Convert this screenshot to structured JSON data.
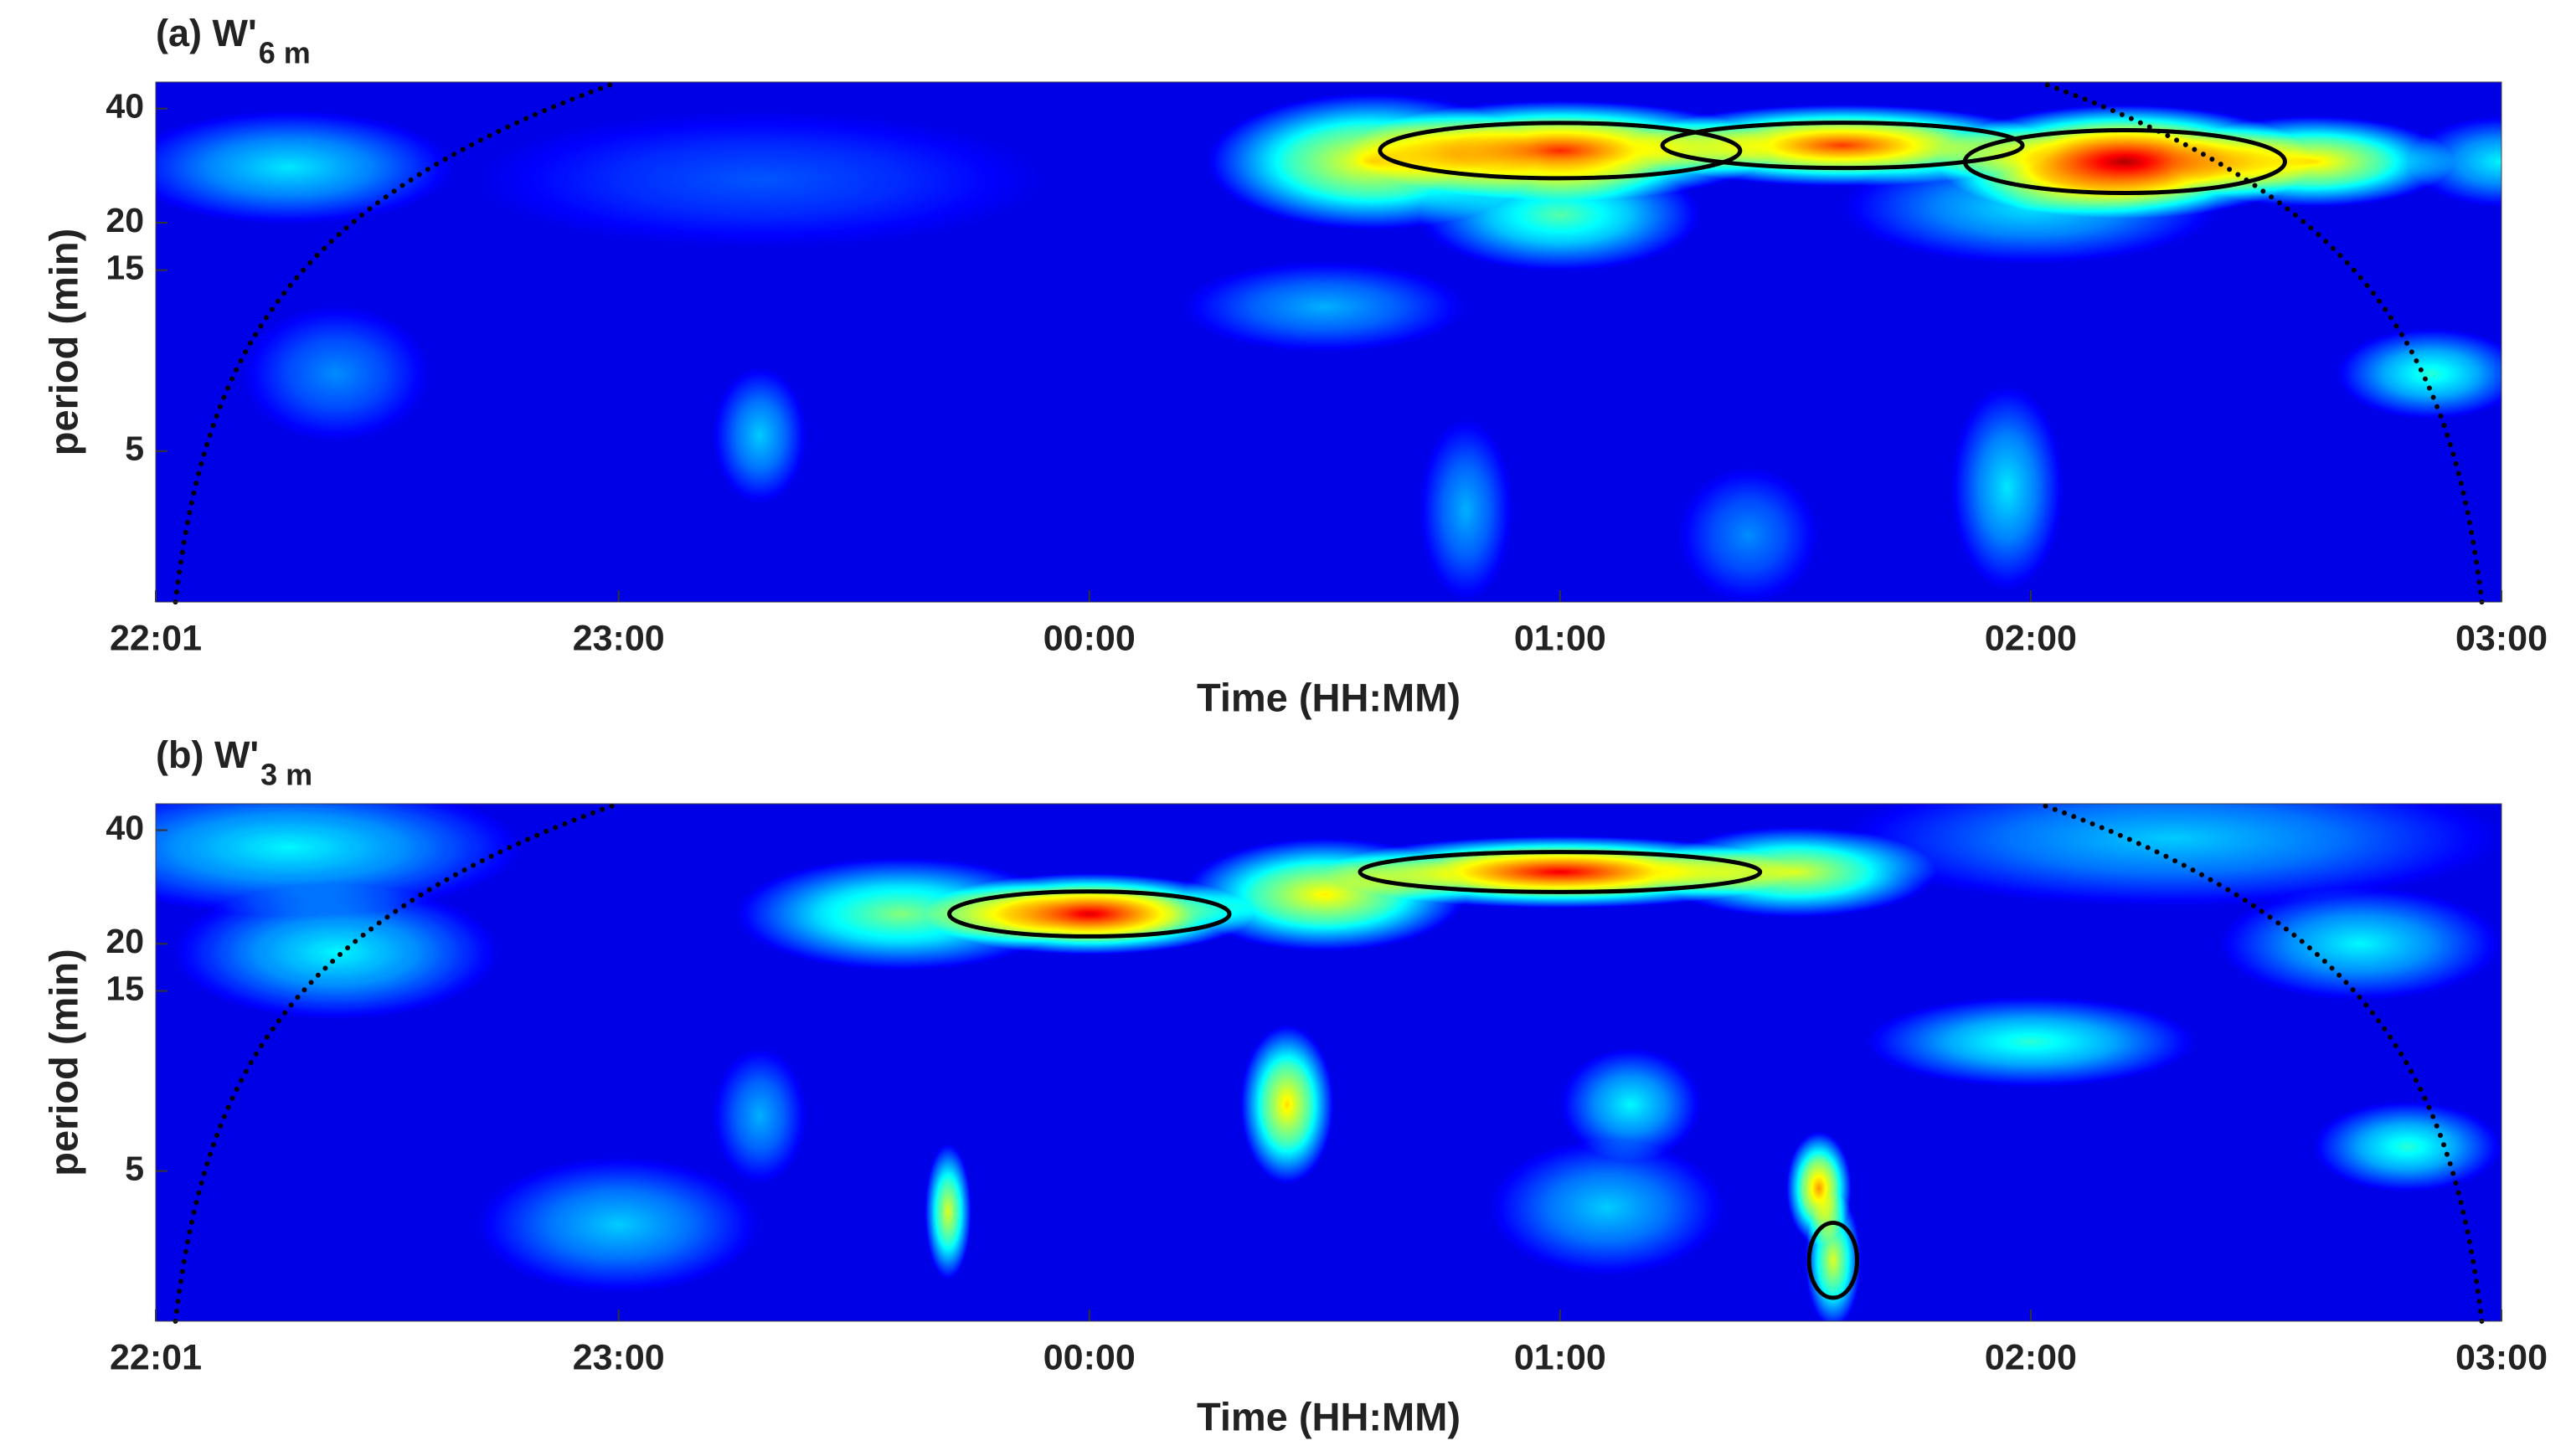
{
  "chart_data": [
    {
      "type": "heatmap",
      "title": "(a) W'",
      "title_subscript": "6 m",
      "xlabel": "Time (HH:MM)",
      "ylabel": "period (min)",
      "xlim": [
        22.0167,
        27
      ],
      "xticks": [
        {
          "value": 22.0167,
          "label": "22:01"
        },
        {
          "value": 23,
          "label": "23:00"
        },
        {
          "value": 24,
          "label": "00:00"
        },
        {
          "value": 25,
          "label": "01:00"
        },
        {
          "value": 26,
          "label": "02:00"
        },
        {
          "value": 27,
          "label": "03:00"
        }
      ],
      "ylim": [
        2,
        47
      ],
      "yticks": [
        5,
        15,
        20,
        40
      ],
      "yscale": "log",
      "background": 0.1,
      "contour_color": "#000000",
      "blobs": [
        {
          "x": 22.3,
          "period": 28,
          "power": 0.28,
          "x_spread": 0.35,
          "period_spread": 0.25,
          "significant": false
        },
        {
          "x": 23.3,
          "period": 26,
          "power": 0.12,
          "x_spread": 0.6,
          "period_spread": 0.3,
          "significant": false
        },
        {
          "x": 24.6,
          "period": 29,
          "power": 0.6,
          "x_spread": 0.35,
          "period_spread": 0.3,
          "significant": false
        },
        {
          "x": 25.0,
          "period": 31,
          "power": 0.82,
          "x_spread": 0.45,
          "period_spread": 0.22,
          "significant": true
        },
        {
          "x": 25.6,
          "period": 32,
          "power": 0.8,
          "x_spread": 0.45,
          "period_spread": 0.18,
          "significant": true
        },
        {
          "x": 26.2,
          "period": 29,
          "power": 0.95,
          "x_spread": 0.4,
          "period_spread": 0.25,
          "significant": true
        },
        {
          "x": 26.6,
          "period": 29,
          "power": 0.62,
          "x_spread": 0.3,
          "period_spread": 0.2,
          "significant": false
        },
        {
          "x": 27.0,
          "period": 29,
          "power": 0.3,
          "x_spread": 0.2,
          "period_spread": 0.2,
          "significant": false
        },
        {
          "x": 25.0,
          "period": 21,
          "power": 0.4,
          "x_spread": 0.3,
          "period_spread": 0.25,
          "significant": false
        },
        {
          "x": 26.0,
          "period": 22,
          "power": 0.28,
          "x_spread": 0.4,
          "period_spread": 0.25,
          "significant": false
        },
        {
          "x": 24.5,
          "period": 12,
          "power": 0.22,
          "x_spread": 0.3,
          "period_spread": 0.2,
          "significant": false
        },
        {
          "x": 26.85,
          "period": 8,
          "power": 0.35,
          "x_spread": 0.2,
          "period_spread": 0.2,
          "significant": false
        },
        {
          "x": 23.3,
          "period": 5.5,
          "power": 0.25,
          "x_spread": 0.1,
          "period_spread": 0.3,
          "significant": false
        },
        {
          "x": 25.95,
          "period": 4,
          "power": 0.28,
          "x_spread": 0.12,
          "period_spread": 0.45,
          "significant": false
        },
        {
          "x": 24.8,
          "period": 3.5,
          "power": 0.22,
          "x_spread": 0.1,
          "period_spread": 0.4,
          "significant": false
        },
        {
          "x": 22.4,
          "period": 8,
          "power": 0.18,
          "x_spread": 0.2,
          "period_spread": 0.3,
          "significant": false
        },
        {
          "x": 25.4,
          "period": 3,
          "power": 0.18,
          "x_spread": 0.15,
          "period_spread": 0.3,
          "significant": false
        }
      ]
    },
    {
      "type": "heatmap",
      "title": "(b) W'",
      "title_subscript": "3 m",
      "xlabel": "Time (HH:MM)",
      "ylabel": "period (min)",
      "xlim": [
        22.0167,
        27
      ],
      "xticks": [
        {
          "value": 22.0167,
          "label": "22:01"
        },
        {
          "value": 23,
          "label": "23:00"
        },
        {
          "value": 24,
          "label": "00:00"
        },
        {
          "value": 25,
          "label": "01:00"
        },
        {
          "value": 26,
          "label": "02:00"
        },
        {
          "value": 27,
          "label": "03:00"
        }
      ],
      "ylim": [
        2,
        47
      ],
      "yticks": [
        5,
        15,
        20,
        40
      ],
      "yscale": "log",
      "background": 0.1,
      "contour_color": "#000000",
      "blobs": [
        {
          "x": 22.3,
          "period": 36,
          "power": 0.3,
          "x_spread": 0.5,
          "period_spread": 0.3,
          "significant": false
        },
        {
          "x": 22.4,
          "period": 19,
          "power": 0.3,
          "x_spread": 0.35,
          "period_spread": 0.3,
          "significant": false
        },
        {
          "x": 23.6,
          "period": 24,
          "power": 0.45,
          "x_spread": 0.35,
          "period_spread": 0.25,
          "significant": false
        },
        {
          "x": 24.0,
          "period": 24,
          "power": 0.9,
          "x_spread": 0.35,
          "period_spread": 0.18,
          "significant": true
        },
        {
          "x": 24.5,
          "period": 27,
          "power": 0.6,
          "x_spread": 0.3,
          "period_spread": 0.25,
          "significant": false
        },
        {
          "x": 25.0,
          "period": 31,
          "power": 0.88,
          "x_spread": 0.5,
          "period_spread": 0.16,
          "significant": true
        },
        {
          "x": 25.5,
          "period": 31,
          "power": 0.55,
          "x_spread": 0.3,
          "period_spread": 0.2,
          "significant": false
        },
        {
          "x": 26.3,
          "period": 38,
          "power": 0.25,
          "x_spread": 0.7,
          "period_spread": 0.3,
          "significant": false
        },
        {
          "x": 26.7,
          "period": 20,
          "power": 0.3,
          "x_spread": 0.3,
          "period_spread": 0.25,
          "significant": false
        },
        {
          "x": 24.42,
          "period": 7.5,
          "power": 0.62,
          "x_spread": 0.1,
          "period_spread": 0.35,
          "significant": false
        },
        {
          "x": 26.0,
          "period": 11,
          "power": 0.35,
          "x_spread": 0.35,
          "period_spread": 0.2,
          "significant": false
        },
        {
          "x": 25.15,
          "period": 7.5,
          "power": 0.3,
          "x_spread": 0.15,
          "period_spread": 0.25,
          "significant": false
        },
        {
          "x": 26.8,
          "period": 5.8,
          "power": 0.35,
          "x_spread": 0.2,
          "period_spread": 0.2,
          "significant": false
        },
        {
          "x": 25.55,
          "period": 4.5,
          "power": 0.7,
          "x_spread": 0.07,
          "period_spread": 0.25,
          "significant": false
        },
        {
          "x": 25.58,
          "period": 2.9,
          "power": 0.55,
          "x_spread": 0.06,
          "period_spread": 0.3,
          "significant": true
        },
        {
          "x": 23.7,
          "period": 3.9,
          "power": 0.55,
          "x_spread": 0.05,
          "period_spread": 0.3,
          "significant": false
        },
        {
          "x": 23.0,
          "period": 3.6,
          "power": 0.25,
          "x_spread": 0.3,
          "period_spread": 0.3,
          "significant": false
        },
        {
          "x": 23.3,
          "period": 7,
          "power": 0.22,
          "x_spread": 0.1,
          "period_spread": 0.3,
          "significant": false
        },
        {
          "x": 25.1,
          "period": 4,
          "power": 0.25,
          "x_spread": 0.25,
          "period_spread": 0.3,
          "significant": false
        }
      ]
    }
  ]
}
